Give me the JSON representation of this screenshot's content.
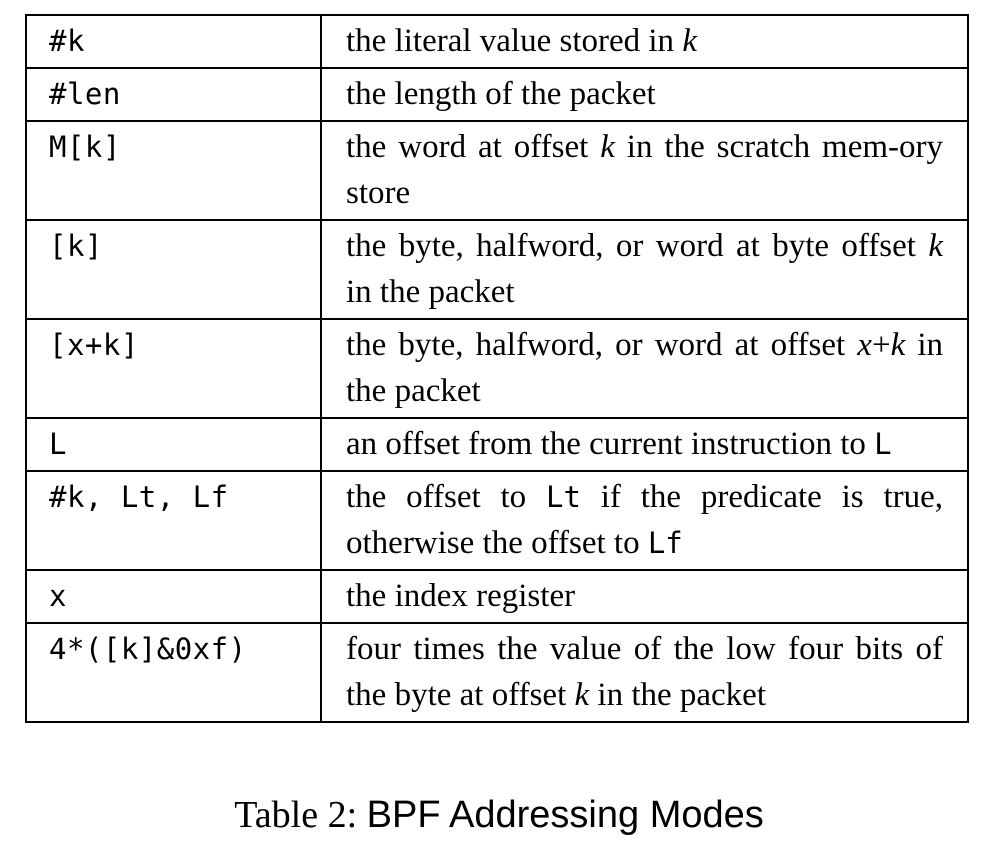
{
  "table": {
    "rows": [
      {
        "syntax": "#k",
        "desc": [
          {
            "t": "the literal value stored in "
          },
          {
            "t": "k",
            "i": true
          }
        ]
      },
      {
        "syntax": "#len",
        "desc": [
          {
            "t": "the length of the packet"
          }
        ]
      },
      {
        "syntax": "M[k]",
        "desc": [
          {
            "t": "the word at offset "
          },
          {
            "t": "k",
            "i": true
          },
          {
            "t": " in the scratch mem-ory store"
          }
        ]
      },
      {
        "syntax": "[k]",
        "desc": [
          {
            "t": "the byte, halfword, or word at byte offset "
          },
          {
            "t": "k",
            "i": true
          },
          {
            "t": " in the packet"
          }
        ]
      },
      {
        "syntax": "[x+k]",
        "desc": [
          {
            "t": "the byte, halfword, or word at offset "
          },
          {
            "t": "x",
            "i": true
          },
          {
            "t": "+"
          },
          {
            "t": "k",
            "i": true
          },
          {
            "t": " in the packet"
          }
        ]
      },
      {
        "syntax": "L",
        "desc": [
          {
            "t": "an offset from the current instruction to "
          },
          {
            "t": "L",
            "m": true
          }
        ]
      },
      {
        "syntax": "#k, Lt, Lf",
        "desc": [
          {
            "t": "the offset to "
          },
          {
            "t": "Lt",
            "m": true
          },
          {
            "t": " if the predicate is true, otherwise the offset to "
          },
          {
            "t": "Lf",
            "m": true
          }
        ]
      },
      {
        "syntax": "x",
        "desc": [
          {
            "t": "the index register"
          }
        ]
      },
      {
        "syntax": "4*([k]&0xf)",
        "desc": [
          {
            "t": "four times the value of the low four bits of the byte at offset "
          },
          {
            "t": "k",
            "i": true
          },
          {
            "t": " in the packet"
          }
        ]
      }
    ]
  },
  "caption": {
    "label": "Table 2:",
    "title": "BPF Addressing Modes"
  }
}
